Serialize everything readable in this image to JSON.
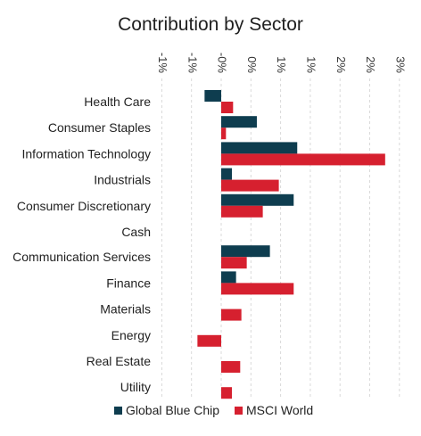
{
  "chart_data": {
    "type": "bar",
    "orientation": "horizontal",
    "title": "Contribution by Sector",
    "xlabel": "",
    "ylabel": "",
    "x_tick_labels": [
      "-1%",
      "-1%",
      "-0%",
      "0%",
      "1%",
      "1%",
      "2%",
      "2%",
      "3%",
      "3%"
    ],
    "xlim": [
      -1.0,
      3.0
    ],
    "x_ticks": [
      -1.0,
      -0.5,
      0.0,
      0.5,
      1.0,
      1.5,
      2.0,
      2.5,
      3.0,
      3.5
    ],
    "grid": true,
    "legend_position": "bottom",
    "categories": [
      "Health Care",
      "Consumer Staples",
      "Information Technology",
      "Industrials",
      "Consumer Discretionary",
      "Cash",
      "Communication Services",
      "Finance",
      "Materials",
      "Energy",
      "Real Estate",
      "Utility"
    ],
    "series": [
      {
        "name": "Global Blue Chip",
        "color": "#0e3d4f",
        "values": [
          -0.28,
          0.6,
          1.28,
          0.18,
          1.22,
          0.0,
          0.82,
          0.25,
          0.0,
          0.0,
          0.0,
          0.0
        ]
      },
      {
        "name": "MSCI World",
        "color": "#d6202f",
        "values": [
          0.2,
          0.08,
          2.76,
          0.97,
          0.7,
          0.0,
          0.43,
          1.22,
          0.34,
          -0.4,
          0.32,
          0.18
        ]
      }
    ]
  }
}
